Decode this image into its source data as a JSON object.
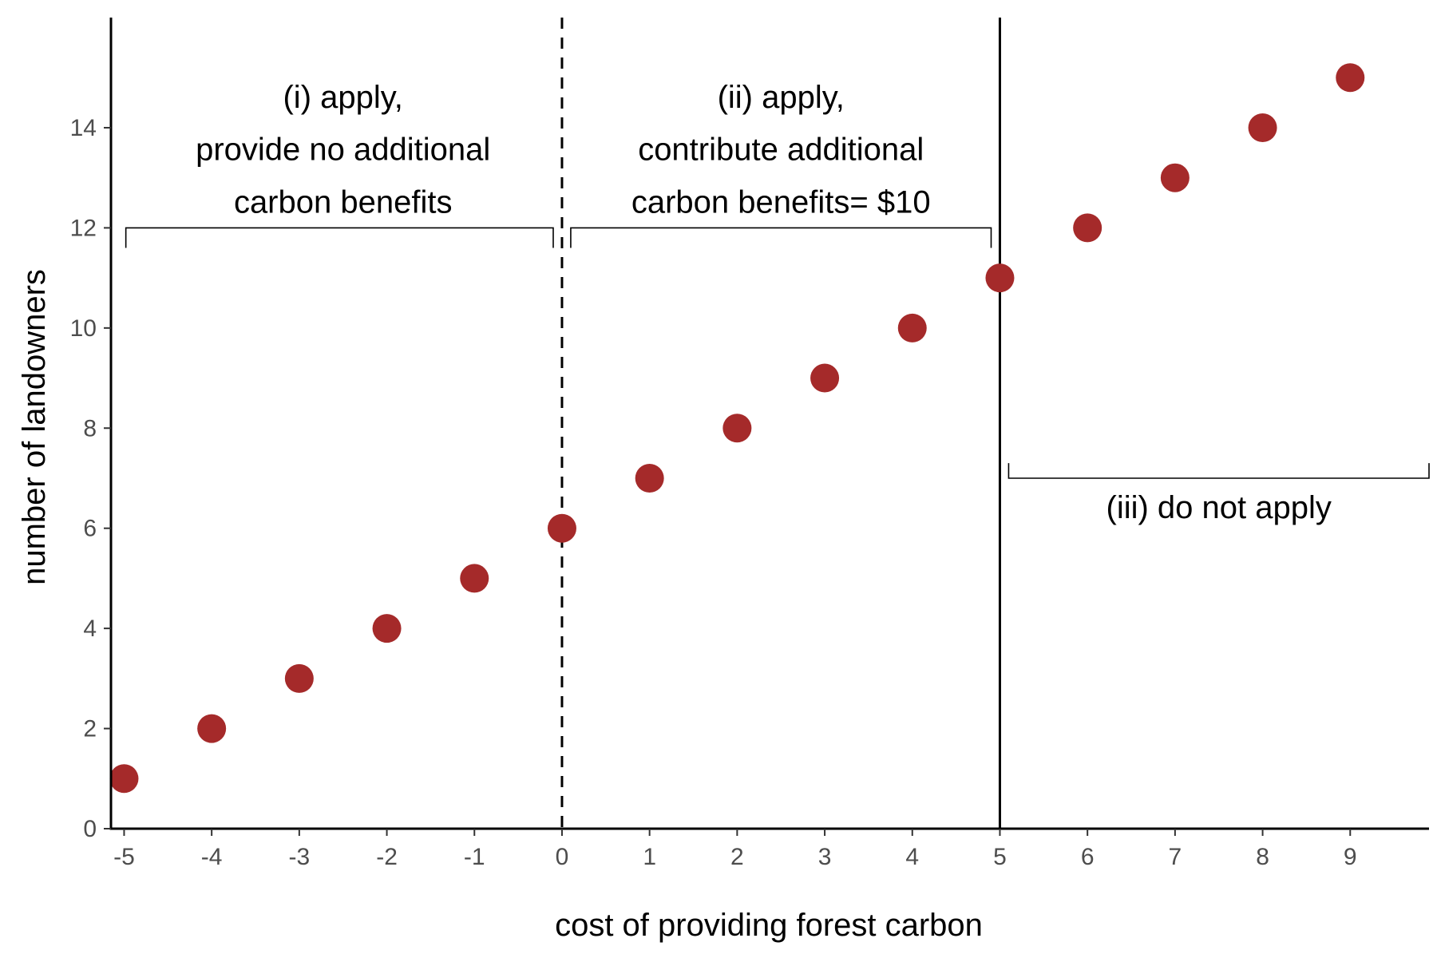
{
  "chart_data": {
    "type": "scatter",
    "title": "",
    "xlabel": "cost of providing forest carbon",
    "ylabel": "number of landowners",
    "xlim": [
      -5.15,
      9.9
    ],
    "ylim": [
      0,
      16.2
    ],
    "x_ticks": [
      "-5",
      "-4",
      "-3",
      "-2",
      "-1",
      "0",
      "1",
      "2",
      "3",
      "4",
      "5",
      "6",
      "7",
      "8",
      "9"
    ],
    "y_ticks": [
      "0",
      "2",
      "4",
      "6",
      "8",
      "10",
      "12",
      "14"
    ],
    "grid": false,
    "legend": "none",
    "point_color": "#a52a2a",
    "points": [
      {
        "x": -5,
        "y": 1
      },
      {
        "x": -4,
        "y": 2
      },
      {
        "x": -3,
        "y": 3
      },
      {
        "x": -2,
        "y": 4
      },
      {
        "x": -1,
        "y": 5
      },
      {
        "x": 0,
        "y": 6
      },
      {
        "x": 1,
        "y": 7
      },
      {
        "x": 2,
        "y": 8
      },
      {
        "x": 3,
        "y": 9
      },
      {
        "x": 4,
        "y": 10
      },
      {
        "x": 5,
        "y": 11
      },
      {
        "x": 6,
        "y": 12
      },
      {
        "x": 7,
        "y": 13
      },
      {
        "x": 8,
        "y": 14
      },
      {
        "x": 9,
        "y": 15
      }
    ],
    "reference_lines": [
      {
        "name": "dashed-line",
        "x": 0,
        "style": "dashed"
      },
      {
        "name": "solid-line",
        "x": 5,
        "style": "solid"
      }
    ],
    "annotations": [
      {
        "name": "region-i",
        "lines": [
          "(i) apply,",
          "provide no additional",
          "carbon benefits"
        ],
        "x_center": -2.5,
        "y_lines": [
          14.4,
          13.35,
          12.3
        ],
        "bracket": {
          "x1": -4.98,
          "x2": -0.1,
          "y": 12,
          "tick_to": 11.6,
          "direction": "down"
        }
      },
      {
        "name": "region-ii",
        "lines": [
          "(ii) apply,",
          "contribute additional",
          "carbon benefits= $10"
        ],
        "x_center": 2.5,
        "y_lines": [
          14.4,
          13.35,
          12.3
        ],
        "bracket": {
          "x1": 0.1,
          "x2": 4.9,
          "y": 12,
          "tick_to": 11.6,
          "direction": "down"
        }
      },
      {
        "name": "region-iii",
        "lines": [
          "(iii) do not apply"
        ],
        "x_center": 7.5,
        "y_lines": [
          6.2
        ],
        "bracket": {
          "x1": 5.1,
          "x2": 9.9,
          "y": 7,
          "tick_to": 7.3,
          "direction": "up"
        }
      }
    ]
  }
}
